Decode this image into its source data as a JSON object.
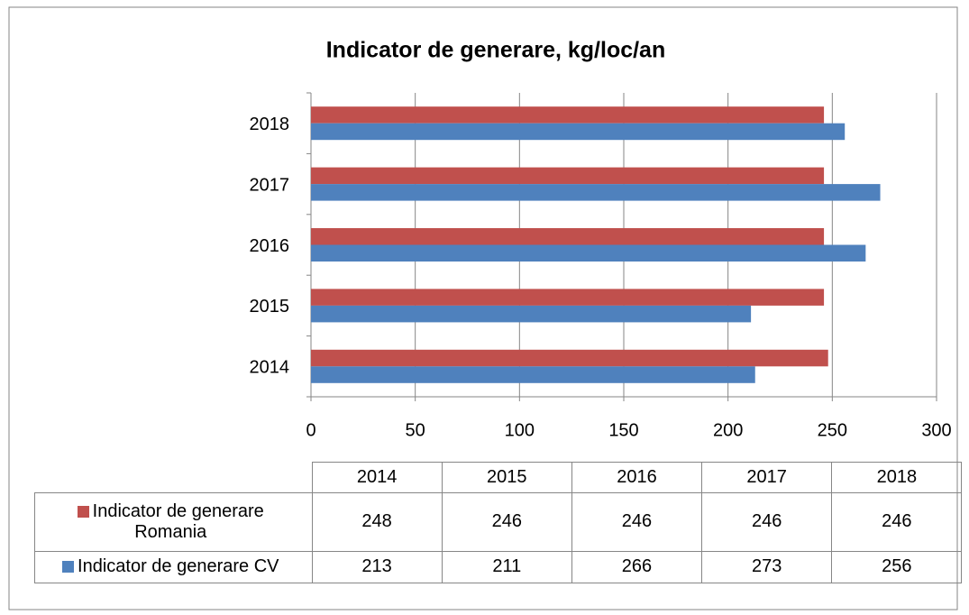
{
  "chart_data": {
    "type": "bar",
    "orientation": "horizontal",
    "title": "Indicator de generare, kg/loc/an",
    "categories": [
      "2014",
      "2015",
      "2016",
      "2017",
      "2018"
    ],
    "series": [
      {
        "name": "Indicator de generare Romania",
        "color": "#c0504d",
        "values": [
          248,
          246,
          246,
          246,
          246
        ]
      },
      {
        "name": "Indicator de generare CV",
        "color": "#4f81bd",
        "values": [
          213,
          211,
          266,
          273,
          256
        ]
      }
    ],
    "xlim": [
      0,
      300
    ],
    "xticks": [
      0,
      50,
      100,
      150,
      200,
      250,
      300
    ],
    "grid": true,
    "data_table": true
  }
}
